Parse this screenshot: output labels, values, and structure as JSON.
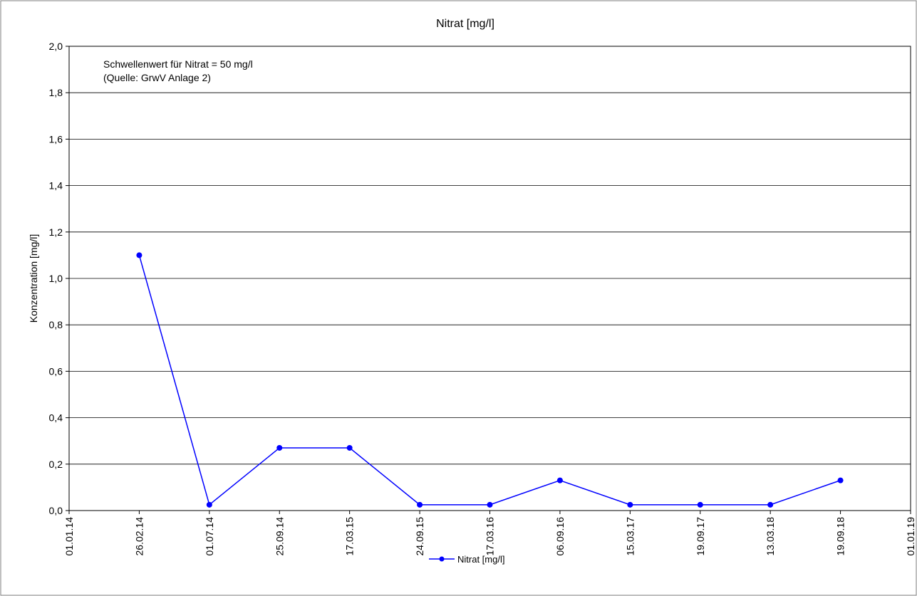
{
  "chart_data": {
    "type": "line",
    "title": "Nitrat [mg/l]",
    "xlabel": "",
    "ylabel": "Konzentration [mg/l]",
    "annotation": [
      "Schwellenwert für Nitrat = 50 mg/l",
      "(Quelle: GrwV Anlage 2)"
    ],
    "x_tick_labels": [
      "01.01.14",
      "26.02.14",
      "01.07.14",
      "25.09.14",
      "17.03.15",
      "24.09.15",
      "17.03.16",
      "06.09.16",
      "15.03.17",
      "19.09.17",
      "13.03.18",
      "19.09.18",
      "01.01.19"
    ],
    "y_tick_labels": [
      "0,0",
      "0,2",
      "0,4",
      "0,6",
      "0,8",
      "1,0",
      "1,2",
      "1,4",
      "1,6",
      "1,8",
      "2,0"
    ],
    "ylim": [
      0,
      2.0
    ],
    "grid": true,
    "legend_position": "bottom",
    "series": [
      {
        "name": "Nitrat [mg/l]",
        "color": "#0000ff",
        "x": [
          "26.02.14",
          "01.07.14",
          "25.09.14",
          "17.03.15",
          "24.09.15",
          "17.03.16",
          "06.09.16",
          "15.03.17",
          "19.09.17",
          "13.03.18",
          "19.09.18"
        ],
        "values": [
          1.1,
          0.025,
          0.27,
          0.27,
          0.025,
          0.025,
          0.13,
          0.025,
          0.025,
          0.025,
          0.13
        ]
      }
    ]
  }
}
